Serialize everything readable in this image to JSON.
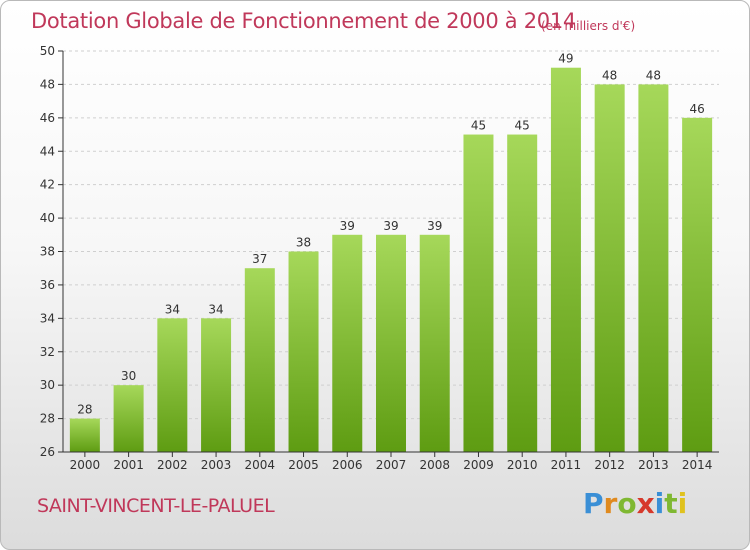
{
  "header": {
    "title": "Dotation Globale de Fonctionnement de 2000 à 2014",
    "unit": "(en milliers d'€)"
  },
  "footer": {
    "commune": "SAINT-VINCENT-LE-PALUEL",
    "logo": "Proxiti",
    "logo_colors": [
      "#3a8fd6",
      "#e08a1e",
      "#7fb832",
      "#d6392b",
      "#3a8fd6",
      "#7fb832",
      "#e0c21e"
    ]
  },
  "colors": {
    "bar_light": "#a6d85a",
    "bar_dark": "#5e9c12",
    "text": "#c0385a",
    "axis": "#333333",
    "grid": "#cfcfcf"
  },
  "chart_data": {
    "type": "bar",
    "title": "Dotation Globale de Fonctionnement de 2000 à 2014",
    "xlabel": "",
    "ylabel": "",
    "categories": [
      "2000",
      "2001",
      "2002",
      "2003",
      "2004",
      "2005",
      "2006",
      "2007",
      "2008",
      "2009",
      "2010",
      "2011",
      "2012",
      "2013",
      "2014"
    ],
    "values": [
      28,
      30,
      34,
      34,
      37,
      38,
      39,
      39,
      39,
      45,
      45,
      49,
      48,
      48,
      46
    ],
    "ylim": [
      26,
      50
    ],
    "yticks": [
      26,
      28,
      30,
      32,
      34,
      36,
      38,
      40,
      42,
      44,
      46,
      48,
      50
    ],
    "grid": true,
    "data_labels": true
  }
}
